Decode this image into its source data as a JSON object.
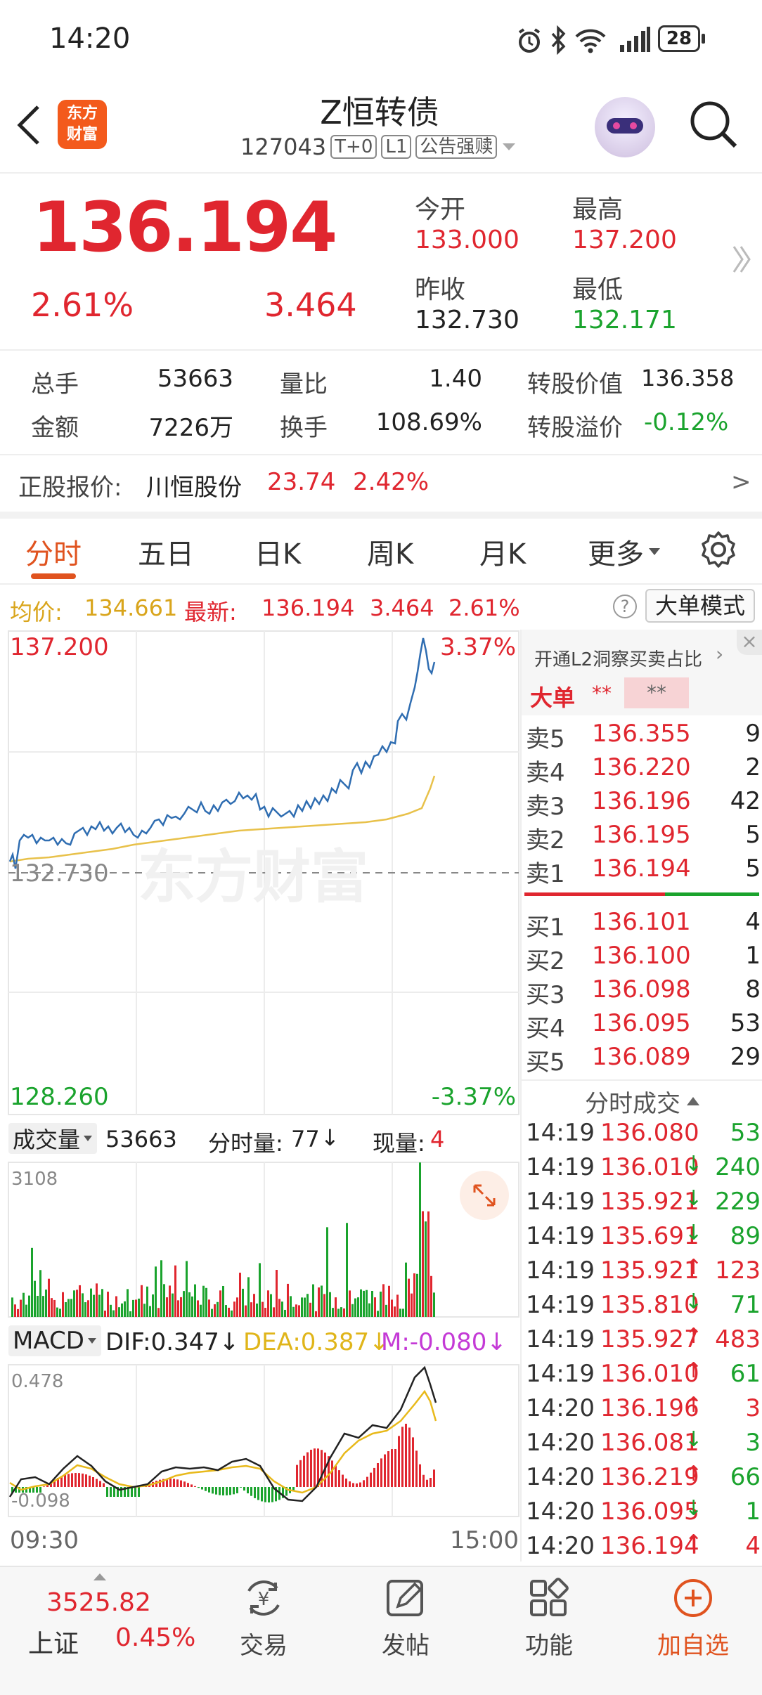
{
  "status_bar": {
    "time": "14:20",
    "battery": "28"
  },
  "header": {
    "logo_line1": "东方",
    "logo_line2": "财富",
    "title": "Z恒转债",
    "code": "127043",
    "tag1": "T+0",
    "tag2": "L1",
    "tag3": "公告强赎"
  },
  "quote": {
    "price": "136.194",
    "change_pct": "2.61%",
    "change": "3.464",
    "open_label": "今开",
    "open": "133.000",
    "high_label": "最高",
    "high": "137.200",
    "prev_label": "昨收",
    "prev": "132.730",
    "low_label": "最低",
    "low": "132.171"
  },
  "stats": {
    "vol_label": "总手",
    "vol": "53663",
    "ratio_label": "量比",
    "ratio": "1.40",
    "conv_label": "转股价值",
    "conv": "136.358",
    "amt_label": "金额",
    "amt": "7226万",
    "turn_label": "换手",
    "turn": "108.69%",
    "prem_label": "转股溢价",
    "prem": "-0.12%"
  },
  "stock": {
    "label": "正股报价:",
    "name": "川恒股份",
    "price": "23.74",
    "pct": "2.42%",
    "arrow": ">"
  },
  "tabs": [
    "分时",
    "五日",
    "日K",
    "周K",
    "月K",
    "更多"
  ],
  "avg_bar": {
    "avg_label": "均价:",
    "avg": "134.661",
    "latest_label": "最新:",
    "latest": "136.194",
    "chg": "3.464",
    "pct": "2.61%",
    "mode": "大单模式",
    "help": "?"
  },
  "chart": {
    "ymax": "137.200",
    "ymax_pct": "3.37%",
    "ymid": "132.730",
    "ymin": "128.260",
    "ymin_pct": "-3.37%",
    "watermark": "东方财富"
  },
  "volume": {
    "label": "成交量",
    "total": "53663",
    "fs_label": "分时量:",
    "fs": "77",
    "fs_arrow": "↓",
    "now_label": "现量:",
    "now": "4",
    "max": "3108"
  },
  "macd": {
    "label": "MACD",
    "dif": "DIF:0.347",
    "dif_arrow": "↓",
    "dea": "DEA:0.387",
    "dea_arrow": "↓",
    "m": "M:-0.080",
    "m_arrow": "↓",
    "top": "0.478",
    "bottom": "-0.098",
    "time_start": "09:30",
    "time_end": "15:00"
  },
  "orderbook": {
    "banner": "开通L2洞察买卖占比",
    "big_label": "大单",
    "big_v1": "**",
    "big_v2": "**",
    "sells": [
      {
        "l": "卖5",
        "p": "136.355",
        "v": "9"
      },
      {
        "l": "卖4",
        "p": "136.220",
        "v": "2"
      },
      {
        "l": "卖3",
        "p": "136.196",
        "v": "42"
      },
      {
        "l": "卖2",
        "p": "136.195",
        "v": "5"
      },
      {
        "l": "卖1",
        "p": "136.194",
        "v": "5"
      }
    ],
    "buys": [
      {
        "l": "买1",
        "p": "136.101",
        "v": "4"
      },
      {
        "l": "买2",
        "p": "136.100",
        "v": "1"
      },
      {
        "l": "买3",
        "p": "136.098",
        "v": "8"
      },
      {
        "l": "买4",
        "p": "136.095",
        "v": "53"
      },
      {
        "l": "买5",
        "p": "136.089",
        "v": "29"
      }
    ]
  },
  "ticks": {
    "title": "分时成交",
    "rows": [
      {
        "t": "14:19",
        "p": "136.080",
        "a": "",
        "v": "53",
        "c": "green"
      },
      {
        "t": "14:19",
        "p": "136.010",
        "a": "↓",
        "v": "240",
        "c": "green"
      },
      {
        "t": "14:19",
        "p": "135.921",
        "a": "↓",
        "v": "229",
        "c": "green"
      },
      {
        "t": "14:19",
        "p": "135.691",
        "a": "↓",
        "v": "89",
        "c": "green"
      },
      {
        "t": "14:19",
        "p": "135.921",
        "a": "↑",
        "v": "123",
        "c": "red"
      },
      {
        "t": "14:19",
        "p": "135.810",
        "a": "↓",
        "v": "71",
        "c": "green"
      },
      {
        "t": "14:19",
        "p": "135.927",
        "a": "↑",
        "v": "483",
        "c": "red"
      },
      {
        "t": "14:19",
        "p": "136.010",
        "a": "↑",
        "v": "61",
        "c": "green"
      },
      {
        "t": "14:20",
        "p": "136.196",
        "a": "↑",
        "v": "3",
        "c": "red"
      },
      {
        "t": "14:20",
        "p": "136.081",
        "a": "↓",
        "v": "3",
        "c": "green"
      },
      {
        "t": "14:20",
        "p": "136.219",
        "a": "↑",
        "v": "66",
        "c": "green"
      },
      {
        "t": "14:20",
        "p": "136.095",
        "a": "↓",
        "v": "1",
        "c": "green"
      },
      {
        "t": "14:20",
        "p": "136.194",
        "a": "↑",
        "v": "4",
        "c": "red"
      }
    ]
  },
  "bottom": {
    "index_value": "3525.82",
    "index_name": "上证",
    "index_pct": "0.45%",
    "nav": [
      "交易",
      "发帖",
      "功能",
      "加自选"
    ]
  }
}
